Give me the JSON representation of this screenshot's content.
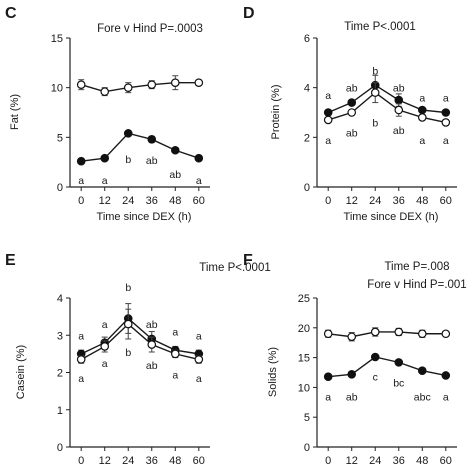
{
  "chart_data": [
    {
      "panel": "C",
      "type": "line",
      "annotation": [
        "Fore v Hind P=.0003"
      ],
      "x": [
        0,
        12,
        24,
        36,
        48,
        60
      ],
      "xticks": [
        "0",
        "12",
        "24",
        "36",
        "48",
        "60"
      ],
      "xlabel": "Time since DEX (h)",
      "ylabel": "Fat (%)",
      "ylim": [
        0,
        15
      ],
      "yticks": [
        "0",
        "5",
        "10",
        "15"
      ],
      "series": [
        {
          "marker": "open",
          "values": [
            10.3,
            9.6,
            10.0,
            10.3,
            10.5,
            10.5
          ],
          "err": [
            0.5,
            0.4,
            0.5,
            0.4,
            0.7,
            0.2
          ]
        },
        {
          "marker": "filled",
          "values": [
            2.6,
            2.9,
            5.4,
            4.8,
            3.7,
            2.9
          ],
          "err": [
            0.1,
            0.15,
            0.2,
            0.3,
            0.15,
            0.1
          ]
        }
      ],
      "letters": [
        {
          "x": 0,
          "y": 0.7,
          "text": "a"
        },
        {
          "x": 12,
          "y": 0.7,
          "text": "a"
        },
        {
          "x": 24,
          "y": 2.8,
          "text": "b"
        },
        {
          "x": 36,
          "y": 2.7,
          "text": "ab"
        },
        {
          "x": 48,
          "y": 1.3,
          "text": "ab"
        },
        {
          "x": 60,
          "y": 0.7,
          "text": "a"
        }
      ]
    },
    {
      "panel": "D",
      "type": "line",
      "annotation": [
        "Time P<.0001"
      ],
      "x": [
        0,
        12,
        24,
        36,
        48,
        60
      ],
      "xticks": [
        "0",
        "12",
        "24",
        "36",
        "48",
        "60"
      ],
      "xlabel": "Time since DEX (h)",
      "ylabel": "Protein (%)",
      "ylim": [
        0,
        6
      ],
      "yticks": [
        "0",
        "2",
        "4",
        "6"
      ],
      "series": [
        {
          "marker": "filled",
          "values": [
            3.0,
            3.4,
            4.1,
            3.5,
            3.1,
            3.0
          ],
          "err": [
            0.1,
            0.1,
            0.4,
            0.25,
            0.1,
            0.1
          ]
        },
        {
          "marker": "open",
          "values": [
            2.7,
            3.0,
            3.8,
            3.1,
            2.8,
            2.6
          ],
          "err": [
            0.1,
            0.1,
            0.4,
            0.25,
            0.1,
            0.1
          ]
        }
      ],
      "letters": [
        {
          "x": 0,
          "y": 3.7,
          "text": "a"
        },
        {
          "x": 12,
          "y": 4.0,
          "text": "ab"
        },
        {
          "x": 24,
          "y": 4.7,
          "text": "b"
        },
        {
          "x": 36,
          "y": 4.0,
          "text": "ab"
        },
        {
          "x": 48,
          "y": 3.6,
          "text": "a"
        },
        {
          "x": 60,
          "y": 3.6,
          "text": "a"
        },
        {
          "x": 0,
          "y": 1.9,
          "text": "a"
        },
        {
          "x": 12,
          "y": 2.2,
          "text": "ab"
        },
        {
          "x": 24,
          "y": 2.6,
          "text": "b"
        },
        {
          "x": 36,
          "y": 2.3,
          "text": "ab"
        },
        {
          "x": 48,
          "y": 1.9,
          "text": "a"
        },
        {
          "x": 60,
          "y": 1.9,
          "text": "a"
        }
      ]
    },
    {
      "panel": "E",
      "type": "line",
      "annotation": [
        "Time P<.0001"
      ],
      "x": [
        0,
        12,
        24,
        36,
        48,
        60
      ],
      "xticks": [
        "0",
        "12",
        "24",
        "36",
        "48",
        "60"
      ],
      "xlabel": "",
      "ylabel": "Casein (%)",
      "ylim": [
        0,
        4
      ],
      "yticks": [
        "0",
        "1",
        "2",
        "3",
        "4"
      ],
      "series": [
        {
          "marker": "filled",
          "values": [
            2.5,
            2.8,
            3.45,
            2.9,
            2.6,
            2.5
          ],
          "err": [
            0.1,
            0.15,
            0.4,
            0.2,
            0.1,
            0.1
          ]
        },
        {
          "marker": "open",
          "values": [
            2.35,
            2.7,
            3.3,
            2.75,
            2.5,
            2.35
          ],
          "err": [
            0.1,
            0.15,
            0.4,
            0.2,
            0.1,
            0.1
          ]
        }
      ],
      "letters": [
        {
          "x": 0,
          "y": 3.0,
          "text": "a"
        },
        {
          "x": 12,
          "y": 3.3,
          "text": "a"
        },
        {
          "x": 24,
          "y": 4.3,
          "text": "b"
        },
        {
          "x": 36,
          "y": 3.3,
          "text": "ab"
        },
        {
          "x": 48,
          "y": 3.1,
          "text": "a"
        },
        {
          "x": 60,
          "y": 3.0,
          "text": "a"
        },
        {
          "x": 0,
          "y": 1.85,
          "text": "a"
        },
        {
          "x": 12,
          "y": 2.25,
          "text": "a"
        },
        {
          "x": 24,
          "y": 2.55,
          "text": "b"
        },
        {
          "x": 36,
          "y": 2.2,
          "text": "ab"
        },
        {
          "x": 48,
          "y": 1.95,
          "text": "a"
        },
        {
          "x": 60,
          "y": 1.85,
          "text": "a"
        }
      ]
    },
    {
      "panel": "F",
      "type": "line",
      "annotation": [
        "Time P=.008",
        "Fore v Hind P=.001"
      ],
      "x": [
        0,
        12,
        24,
        36,
        48,
        60
      ],
      "xticks": [
        "0",
        "12",
        "24",
        "36",
        "48",
        "60"
      ],
      "xlabel": "",
      "ylabel": "Solids (%)",
      "ylim": [
        0,
        25
      ],
      "yticks": [
        "0",
        "5",
        "10",
        "15",
        "20",
        "25"
      ],
      "series": [
        {
          "marker": "open",
          "values": [
            19.0,
            18.5,
            19.3,
            19.3,
            19.0,
            19.0
          ],
          "err": [
            0.6,
            0.7,
            0.7,
            0.6,
            0.6,
            0.3
          ]
        },
        {
          "marker": "filled",
          "values": [
            11.8,
            12.2,
            15.1,
            14.2,
            12.8,
            12.0
          ],
          "err": [
            0.2,
            0.2,
            0.3,
            0.4,
            0.2,
            0.2
          ]
        }
      ],
      "letters": [
        {
          "x": 0,
          "y": 8.5,
          "text": "a"
        },
        {
          "x": 12,
          "y": 8.5,
          "text": "ab"
        },
        {
          "x": 24,
          "y": 11.8,
          "text": "c"
        },
        {
          "x": 36,
          "y": 10.8,
          "text": "bc"
        },
        {
          "x": 48,
          "y": 8.5,
          "text": "abc"
        },
        {
          "x": 60,
          "y": 8.5,
          "text": "a"
        }
      ]
    }
  ]
}
